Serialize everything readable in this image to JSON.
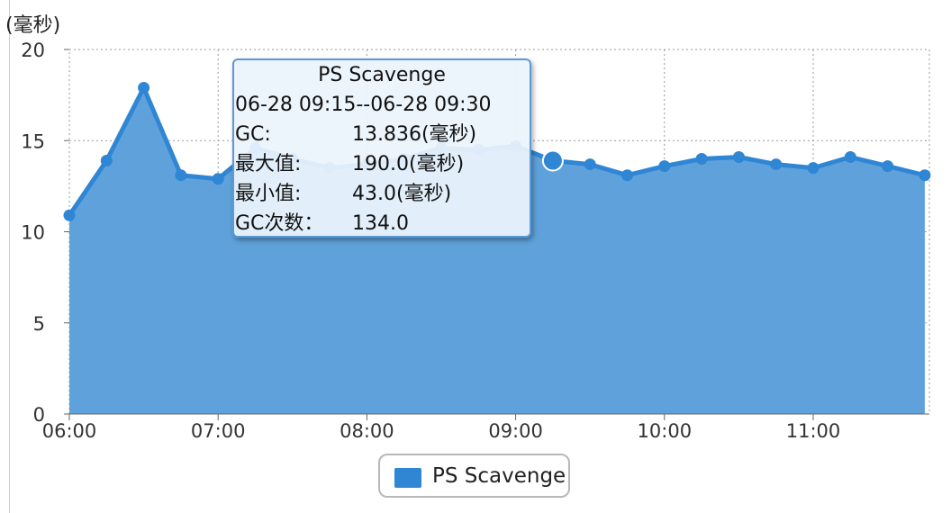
{
  "unit_label": "(毫秒)",
  "chart_data": {
    "type": "area",
    "title": "",
    "xlabel": "",
    "ylabel": "(毫秒)",
    "ylim": [
      0,
      20
    ],
    "yticks": [
      "0",
      "5",
      "10",
      "15",
      "20"
    ],
    "xtick_labels": [
      "06:00",
      "07:00",
      "08:00",
      "09:00",
      "10:00",
      "11:00"
    ],
    "grid": true,
    "legend_placement": "bottom-center",
    "fill_color": "#5fa2db",
    "line_color": "#2f86d4",
    "series": [
      {
        "name": "PS Scavenge",
        "x": [
          "06:00",
          "06:15",
          "06:30",
          "06:45",
          "07:00",
          "07:15",
          "07:30",
          "07:45",
          "08:00",
          "08:15",
          "08:30",
          "08:45",
          "09:00",
          "09:15",
          "09:30",
          "09:45",
          "10:00",
          "10:15",
          "10:30",
          "10:45",
          "11:00",
          "11:15",
          "11:30",
          "11:45"
        ],
        "values": [
          10.9,
          13.9,
          17.9,
          13.1,
          12.9,
          14.6,
          14.0,
          13.5,
          13.7,
          14.0,
          14.6,
          14.5,
          14.7,
          13.9,
          13.7,
          13.1,
          13.6,
          14.0,
          14.1,
          13.7,
          13.5,
          14.1,
          13.6,
          13.1
        ]
      }
    ],
    "highlight_index": 13
  },
  "tooltip": {
    "title": "PS Scavenge",
    "range": "06-28 09:15--06-28 09:30",
    "rows": [
      {
        "label": "GC:",
        "value": "13.836(毫秒)"
      },
      {
        "label": "最大值:",
        "value": "190.0(毫秒)"
      },
      {
        "label": "最小值:",
        "value": "43.0(毫秒)"
      },
      {
        "label": "GC次数：",
        "value": "134.0"
      }
    ]
  },
  "legend": {
    "label": "PS Scavenge",
    "color": "#2f86d4"
  }
}
